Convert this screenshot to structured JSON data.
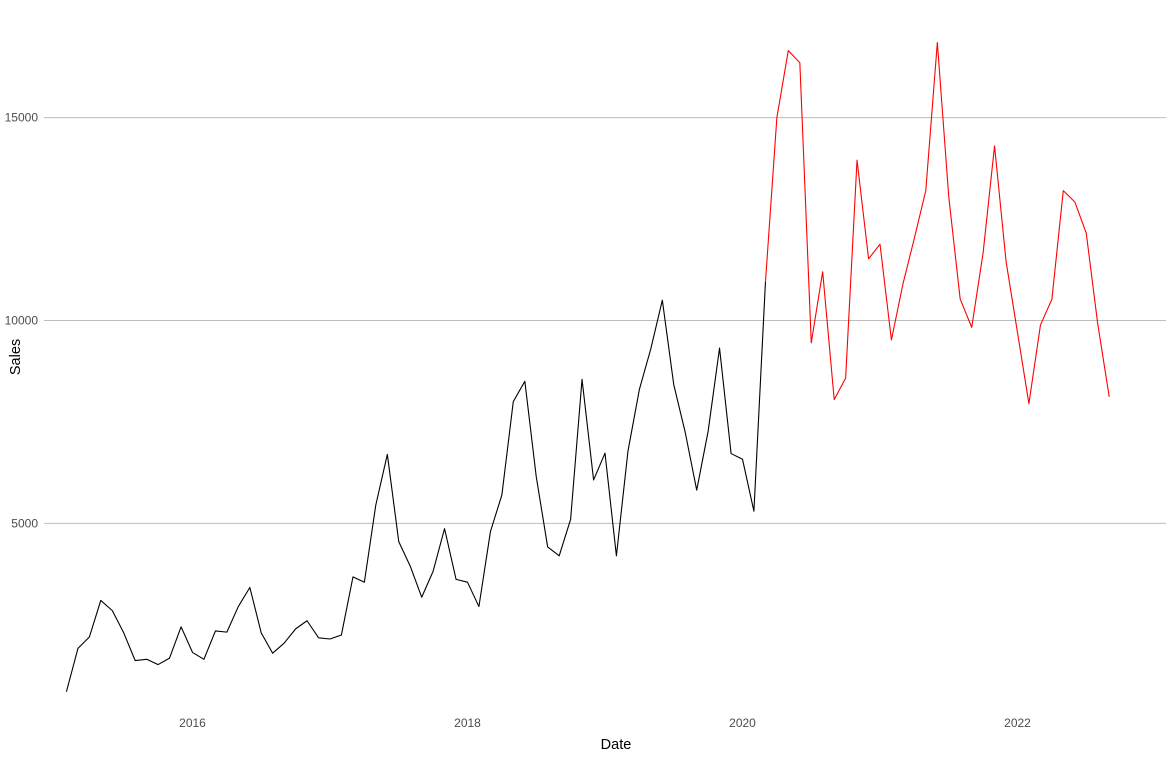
{
  "chart_data": {
    "type": "line",
    "xlabel": "Date",
    "ylabel": "Sales",
    "xlim": [
      2014.92,
      2023.08
    ],
    "ylim": [
      450,
      17700
    ],
    "x_ticks": [
      2016,
      2018,
      2020,
      2022
    ],
    "x_tick_labels": [
      "2016",
      "2018",
      "2020",
      "2022"
    ],
    "y_ticks": [
      5000,
      10000,
      15000
    ],
    "y_tick_labels": [
      "5000",
      "10000",
      "15000"
    ],
    "grid": "horizontal major",
    "legend": "none",
    "series": [
      {
        "color": "#000000",
        "x": [
          2015.083,
          2015.167,
          2015.25,
          2015.333,
          2015.417,
          2015.5,
          2015.583,
          2015.667,
          2015.75,
          2015.833,
          2015.917,
          2016.0,
          2016.083,
          2016.167,
          2016.25,
          2016.333,
          2016.417,
          2016.5,
          2016.583,
          2016.667,
          2016.75,
          2016.833,
          2016.917,
          2017.0,
          2017.083,
          2017.167,
          2017.25,
          2017.333,
          2017.417,
          2017.5,
          2017.583,
          2017.667,
          2017.75,
          2017.833,
          2017.917,
          2018.0,
          2018.083,
          2018.167,
          2018.25,
          2018.333,
          2018.417,
          2018.5,
          2018.583,
          2018.667,
          2018.75,
          2018.833,
          2018.917,
          2019.0,
          2019.083,
          2019.167,
          2019.25,
          2019.333,
          2019.417,
          2019.5,
          2019.583,
          2019.667,
          2019.75,
          2019.833,
          2019.917,
          2020.0,
          2020.083,
          2020.167
        ],
        "values": [
          850,
          1920,
          2200,
          3100,
          2850,
          2300,
          1620,
          1650,
          1520,
          1680,
          2450,
          1820,
          1650,
          2350,
          2320,
          2950,
          3420,
          2300,
          1800,
          2050,
          2400,
          2600,
          2180,
          2150,
          2250,
          3680,
          3550,
          5450,
          6700,
          4550,
          3950,
          3180,
          3820,
          4870,
          3620,
          3550,
          2950,
          4800,
          5700,
          8000,
          8500,
          6150,
          4420,
          4200,
          5100,
          8550,
          6070,
          6730,
          4200,
          6780,
          8300,
          9300,
          10500,
          8420,
          7250,
          5820,
          7270,
          9320,
          6720,
          6580,
          5300,
          10950
        ]
      },
      {
        "color": "#ff0000",
        "x": [
          2020.167,
          2020.25,
          2020.333,
          2020.417,
          2020.5,
          2020.583,
          2020.667,
          2020.75,
          2020.833,
          2020.917,
          2021.0,
          2021.083,
          2021.167,
          2021.25,
          2021.333,
          2021.417,
          2021.5,
          2021.583,
          2021.667,
          2021.75,
          2021.833,
          2021.917,
          2022.0,
          2022.083,
          2022.167,
          2022.25,
          2022.333,
          2022.417,
          2022.5,
          2022.583,
          2022.667
        ],
        "values": [
          10950,
          15000,
          16650,
          16350,
          9450,
          11200,
          8050,
          8580,
          13950,
          11520,
          11880,
          9520,
          10900,
          12030,
          13200,
          16850,
          13050,
          10530,
          9830,
          11670,
          14300,
          11450,
          9700,
          7950,
          9890,
          10520,
          13200,
          12920,
          12150,
          9930,
          8120
        ]
      }
    ]
  }
}
